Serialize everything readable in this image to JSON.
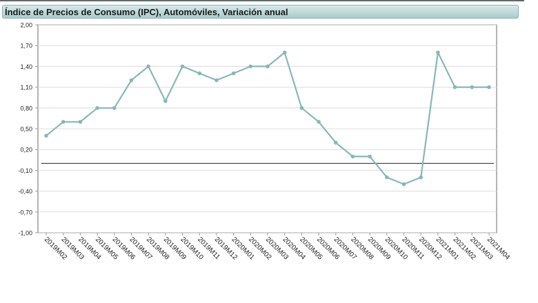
{
  "header": {
    "title": "Índice de Precios de Consumo (IPC), Automóviles, Variación anual"
  },
  "colors": {
    "series": "#86b8b5",
    "grid": "#dcdcdc",
    "axis": "#9a9a9a",
    "baseline": "#333333",
    "title_bar": "#b7d6d6"
  },
  "chart_data": {
    "type": "line",
    "title": "Índice de Precios de Consumo (IPC), Automóviles, Variación anual",
    "xlabel": "",
    "ylabel": "",
    "ylim": [
      -1.0,
      2.0
    ],
    "y_ticks": [
      2.0,
      1.7,
      1.4,
      1.1,
      0.8,
      0.5,
      0.2,
      -0.1,
      -0.4,
      -0.7,
      -1.0
    ],
    "y_tick_labels": [
      "2,00",
      "1,70",
      "1,40",
      "1,10",
      "0,80",
      "0,50",
      "0,20",
      "-0,10",
      "-0,40",
      "-0,70",
      "-1,00"
    ],
    "baseline": 0.0,
    "grid": true,
    "legend": "none",
    "categories": [
      "2019M02",
      "2019M03",
      "2019M04",
      "2019M05",
      "2019M06",
      "2019M07",
      "2019M08",
      "2019M09",
      "2019M10",
      "2019M11",
      "2019M12",
      "2020M01",
      "2020M02",
      "2020M03",
      "2020M04",
      "2020M05",
      "2020M06",
      "2020M07",
      "2020M08",
      "2020M09",
      "2020M10",
      "2020M11",
      "2020M12",
      "2021M01",
      "2021M02",
      "2021M03",
      "2021M04"
    ],
    "series": [
      {
        "values": [
          0.4,
          0.6,
          0.6,
          0.8,
          0.8,
          1.2,
          1.4,
          0.9,
          1.4,
          1.3,
          1.2,
          1.3,
          1.4,
          1.4,
          1.6,
          0.8,
          0.6,
          0.3,
          0.1,
          0.1,
          -0.2,
          -0.3,
          -0.2,
          1.6,
          1.1,
          1.1,
          1.1
        ]
      }
    ]
  }
}
